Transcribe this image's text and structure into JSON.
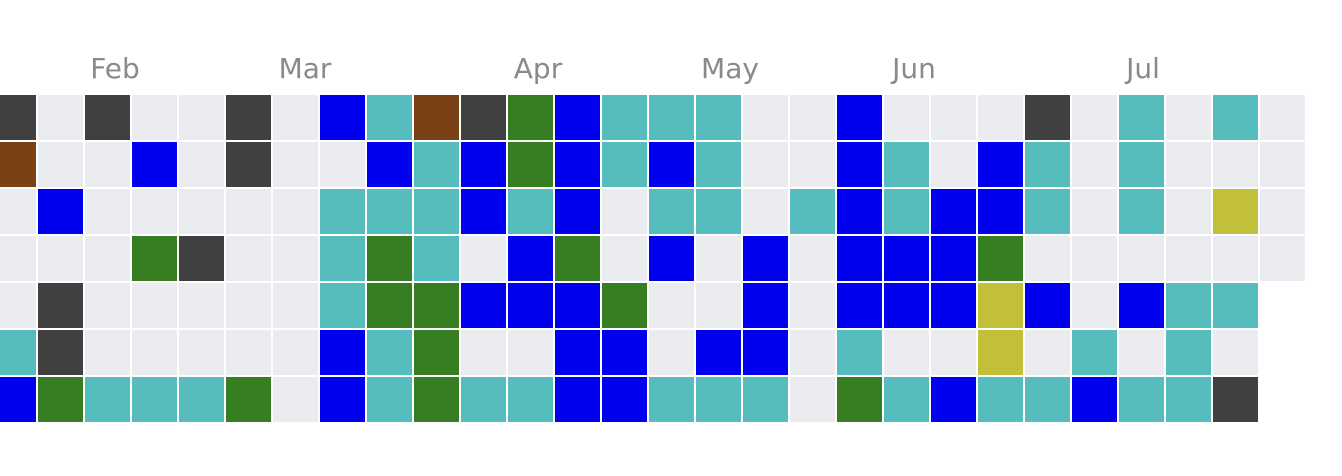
{
  "months": [
    "Feb",
    "Mar",
    "Apr",
    "May",
    "Jun",
    "Jul"
  ],
  "palette": {
    "E": "#ebecf0",
    "D": "#404040",
    "B": "#0000ee",
    "T": "#55bdbd",
    "G": "#377d22",
    "R": "#7a4116",
    "Y": "#c2bf3b"
  },
  "rows": [
    "DEDEEDEBTRDGBTTTEEBEEEDETETE",
    "REEBEDEEBTBGBTBTEEBTEBTETEEE",
    "EBEEEEETTTBTBETTETBTBBTETEYE",
    "EEEGDEETGTEBGEBEBEBBBGEEEEEE",
    "EDEEEEETGGBBBGEEBEBBBYBEBTT",
    "TDEEEEEBTGEEBBEBBETEEYETETE",
    "BGTTTGEBTGTTBBTTTEGTBTTBTTD"
  ]
}
